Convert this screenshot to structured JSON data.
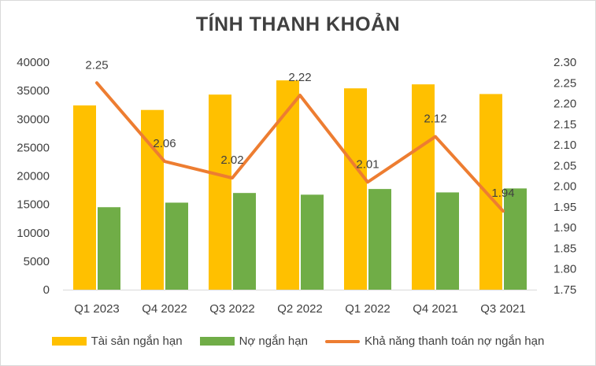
{
  "chart_data": {
    "type": "bar",
    "title": "TÍNH THANH KHOẢN",
    "categories": [
      "Q1 2023",
      "Q4 2022",
      "Q3 2022",
      "Q2 2022",
      "Q1 2022",
      "Q4 2021",
      "Q3 2021"
    ],
    "series": [
      {
        "name": "Tài sản ngắn hạn",
        "type": "bar",
        "axis": "left",
        "color": "#FFC000",
        "values": [
          32400,
          31600,
          34300,
          36800,
          35400,
          36100,
          34400
        ]
      },
      {
        "name": "Nợ ngắn hạn",
        "type": "bar",
        "axis": "left",
        "color": "#70AD47",
        "values": [
          14500,
          15300,
          17000,
          16700,
          17700,
          17100,
          17800
        ]
      },
      {
        "name": "Khả năng thanh toán nợ ngắn hạn",
        "type": "line",
        "axis": "right",
        "color": "#ED7D31",
        "values": [
          2.25,
          2.06,
          2.02,
          2.22,
          2.01,
          2.12,
          1.94
        ],
        "labels": [
          "2.25",
          "2.06",
          "2.02",
          "2.22",
          "2.01",
          "2.12",
          "1.94"
        ]
      }
    ],
    "y_left": {
      "ylim": [
        0,
        40000
      ],
      "ticks": [
        "0",
        "5000",
        "10000",
        "15000",
        "20000",
        "25000",
        "30000",
        "35000",
        "40000"
      ]
    },
    "y_right": {
      "ylim": [
        1.75,
        2.3
      ],
      "ticks": [
        "1.75",
        "1.80",
        "1.85",
        "1.90",
        "1.95",
        "2.00",
        "2.05",
        "2.10",
        "2.15",
        "2.20",
        "2.25",
        "2.30"
      ]
    },
    "grid": false,
    "legend_position": "bottom"
  }
}
